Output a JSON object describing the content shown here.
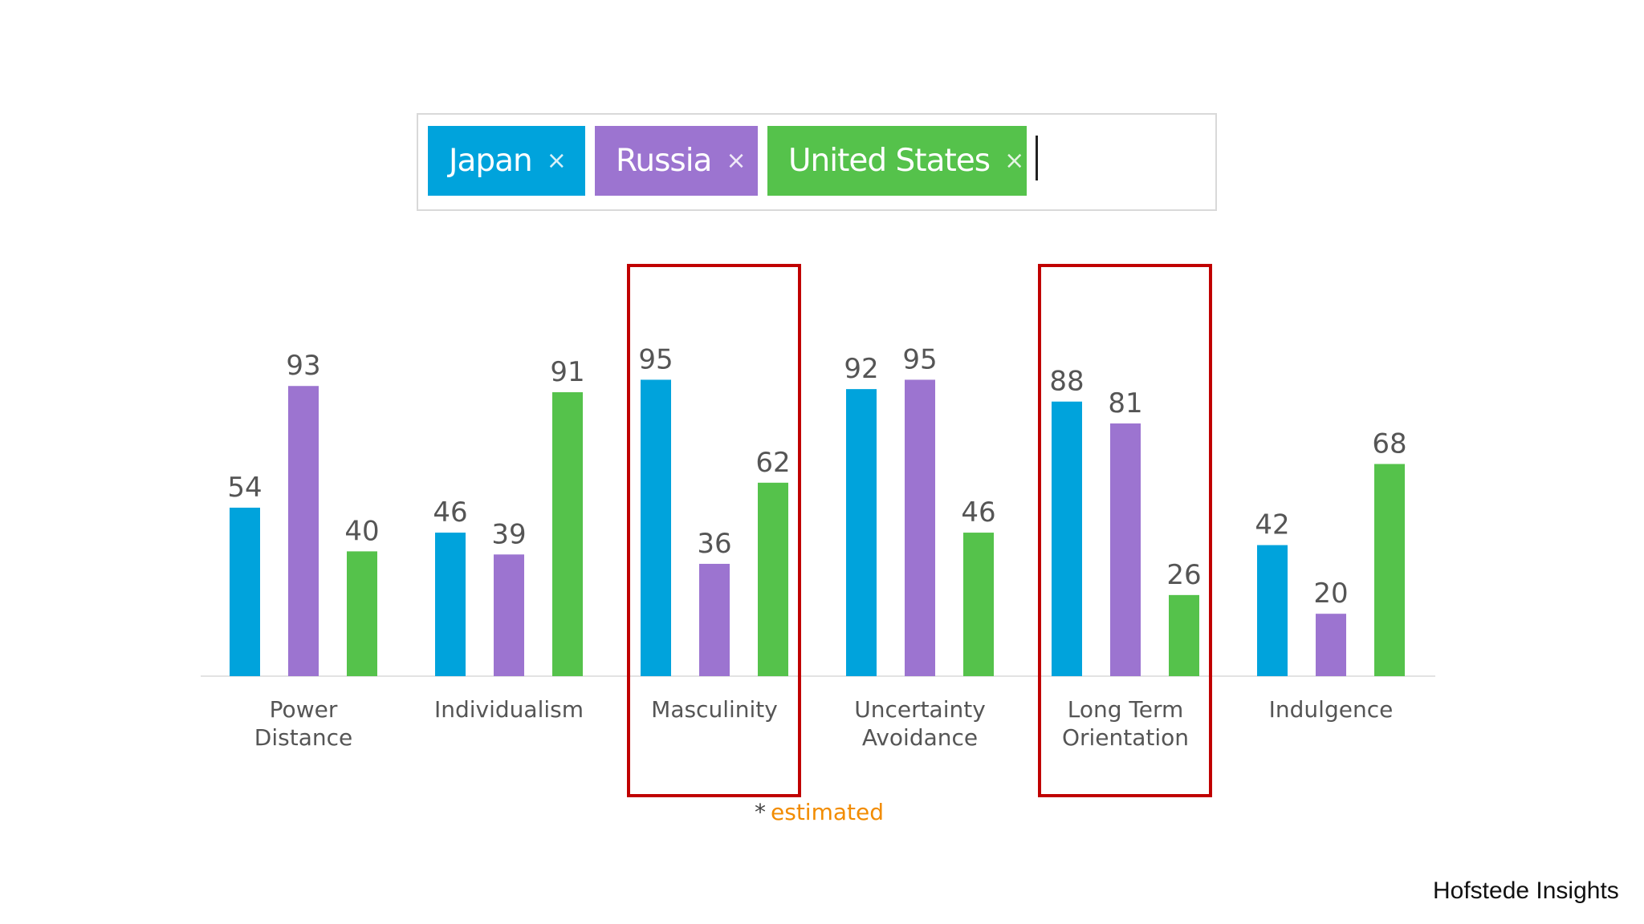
{
  "tags": [
    {
      "label": "Japan",
      "remove_glyph": "×",
      "color": "#00a3dc"
    },
    {
      "label": "Russia",
      "remove_glyph": "×",
      "color": "#9c74d0"
    },
    {
      "label": "United States",
      "remove_glyph": "×",
      "color": "#55c24b"
    }
  ],
  "highlight_color": "#c00000",
  "note": {
    "star": "*",
    "text": "estimated"
  },
  "credit": "Hofstede Insights",
  "chart_data": {
    "type": "bar",
    "categories": [
      [
        "Power",
        "Distance"
      ],
      [
        "Individualism"
      ],
      [
        "Masculinity"
      ],
      [
        "Uncertainty",
        "Avoidance"
      ],
      [
        "Long Term",
        "Orientation"
      ],
      [
        "Indulgence"
      ]
    ],
    "series": [
      {
        "name": "Japan",
        "color": "#00a3dc",
        "values": [
          54,
          46,
          95,
          92,
          88,
          42
        ]
      },
      {
        "name": "Russia",
        "color": "#9c74d0",
        "values": [
          93,
          39,
          36,
          95,
          81,
          20
        ]
      },
      {
        "name": "United States",
        "color": "#55c24b",
        "values": [
          40,
          91,
          62,
          46,
          26,
          68
        ]
      }
    ],
    "ylim": [
      0,
      100
    ],
    "highlighted_categories": [
      "Masculinity",
      "Long Term Orientation"
    ],
    "legend": "top",
    "grid": false
  }
}
